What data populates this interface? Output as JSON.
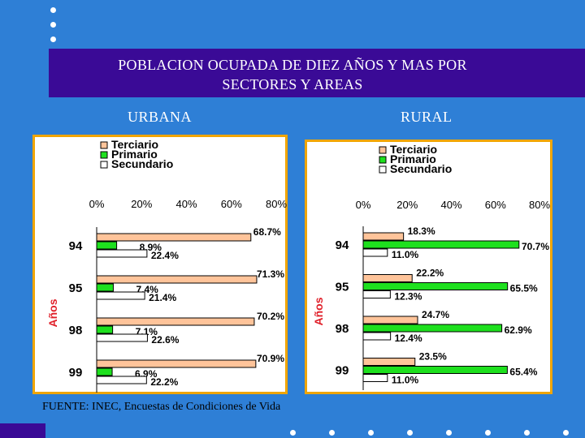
{
  "slide": {
    "title_line1": "POBLACION OCUPADA DE DIEZ AÑOS Y MAS POR",
    "title_line2": "SECTORES Y AREAS",
    "source": "FUENTE: INEC, Encuestas de Condiciones de Vida",
    "colors": {
      "background": "#2e7fd6",
      "title_band": "#3a0a96"
    }
  },
  "chart_data": [
    {
      "type": "bar",
      "orientation": "horizontal",
      "panel_label": "URBANA",
      "categories": [
        "94",
        "95",
        "98",
        "99"
      ],
      "ylabel": "Años",
      "ticks": [
        "0%",
        "20%",
        "40%",
        "60%",
        "80%"
      ],
      "xlim": [
        0,
        80
      ],
      "legend_position": "top-left",
      "series": [
        {
          "name": "Terciario",
          "color": "#ffc49a",
          "values": [
            68.7,
            71.3,
            70.2,
            70.9
          ],
          "labels": [
            "68.7%",
            "71.3%",
            "70.2%",
            "70.9%"
          ]
        },
        {
          "name": "Primario",
          "color": "#1ee01e",
          "values": [
            8.9,
            7.4,
            7.1,
            6.9
          ],
          "labels": [
            "8.9%",
            "7.4%",
            "7.1%",
            "6.9%"
          ]
        },
        {
          "name": "Secundario",
          "color": "#ffffff",
          "values": [
            22.4,
            21.4,
            22.6,
            22.2
          ],
          "labels": [
            "22.4%",
            "21.4%",
            "22.6%",
            "22.2%"
          ]
        }
      ]
    },
    {
      "type": "bar",
      "orientation": "horizontal",
      "panel_label": "RURAL",
      "categories": [
        "94",
        "95",
        "98",
        "99"
      ],
      "ylabel": "Años",
      "ticks": [
        "0%",
        "20%",
        "40%",
        "60%",
        "80%"
      ],
      "xlim": [
        0,
        80
      ],
      "legend_position": "top-left",
      "series": [
        {
          "name": "Terciario",
          "color": "#ffc49a",
          "values": [
            18.3,
            22.2,
            24.7,
            23.5
          ],
          "labels": [
            "18.3%",
            "22.2%",
            "24.7%",
            "23.5%"
          ]
        },
        {
          "name": "Primario",
          "color": "#1ee01e",
          "values": [
            70.7,
            65.5,
            62.9,
            65.4
          ],
          "labels": [
            "70.7%",
            "65.5%",
            "62.9%",
            "65.4%"
          ]
        },
        {
          "name": "Secundario",
          "color": "#ffffff",
          "values": [
            11.0,
            12.3,
            12.4,
            11.0
          ],
          "labels": [
            "11.0%",
            "12.3%",
            "12.4%",
            "11.0%"
          ]
        }
      ]
    }
  ]
}
